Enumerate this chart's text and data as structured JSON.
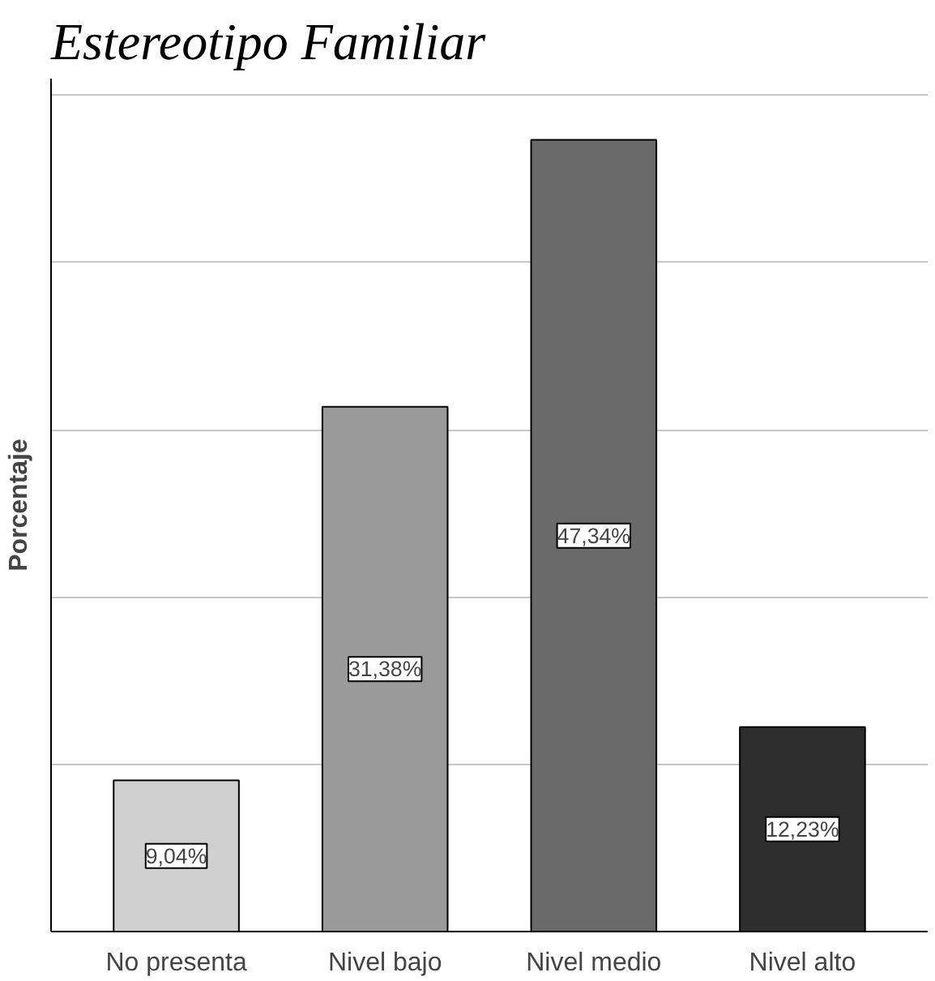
{
  "chart_data": {
    "type": "bar",
    "title": "Estereotipo Familiar",
    "ylabel": "Porcentaje",
    "categories": [
      "No presenta",
      "Nivel bajo",
      "Nivel medio",
      "Nivel alto"
    ],
    "values": [
      9.04,
      31.38,
      47.34,
      12.23
    ],
    "value_labels": [
      "9,04%",
      "31,38%",
      "47,34%",
      "12,23%"
    ],
    "colors": [
      "#d0d0d0",
      "#9a9a9a",
      "#6a6a6a",
      "#2e2e2e"
    ],
    "ylim": [
      0,
      51
    ],
    "yticks": [
      {
        "value": 0,
        "label": null
      },
      {
        "value": 10,
        "label": null
      },
      {
        "value": 20,
        "label": null
      },
      {
        "value": 30,
        "label": null
      },
      {
        "value": 40,
        "label": null
      },
      {
        "value": 50,
        "label": null
      }
    ],
    "grid": "y"
  }
}
